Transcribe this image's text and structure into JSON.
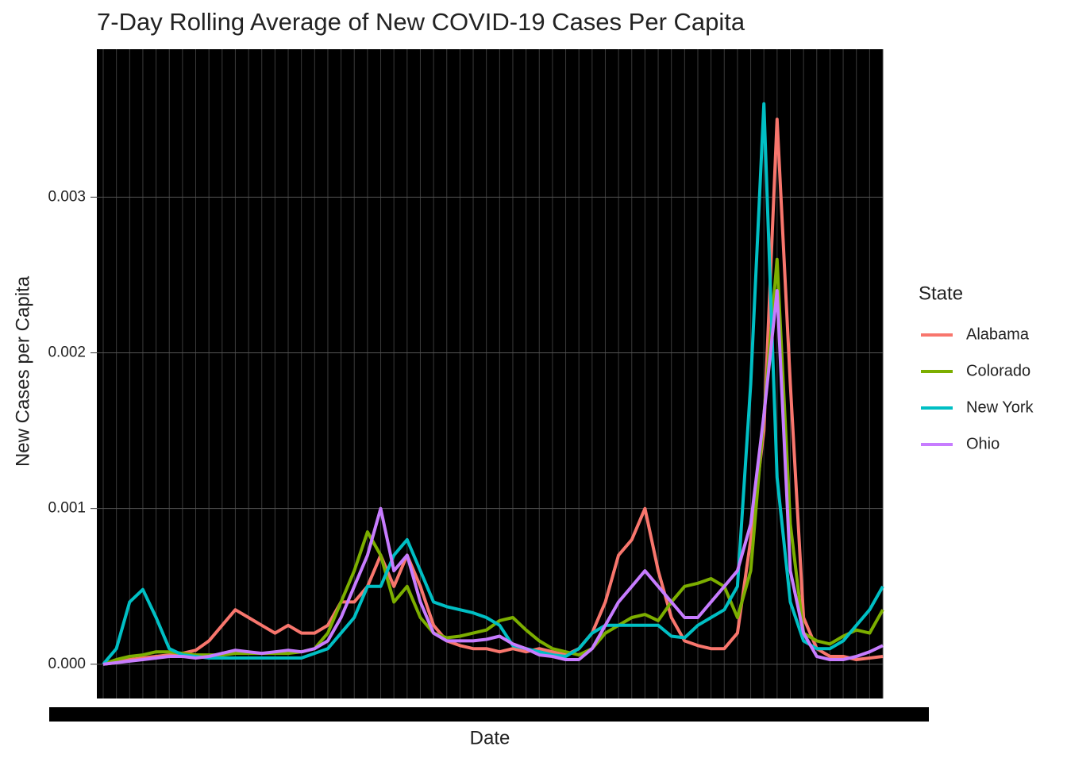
{
  "chart_data": {
    "type": "line",
    "title": "7-Day Rolling Average of New COVID-19 Cases Per Capita",
    "x_label": "Date",
    "y_label": "New Cases per Capita",
    "legend_title": "State",
    "categories": [
      null,
      null,
      null,
      null,
      null,
      null,
      null,
      null,
      null,
      null,
      null,
      null,
      null,
      null,
      null,
      null,
      null,
      null,
      null,
      null,
      null,
      null,
      null,
      null,
      null,
      null,
      null,
      null,
      null,
      null,
      null,
      null,
      null,
      null,
      null,
      null,
      null,
      null,
      null,
      null,
      null,
      null,
      null,
      null,
      null,
      null,
      null,
      null,
      null,
      null,
      null,
      null,
      null,
      null,
      null,
      null,
      null,
      null,
      null,
      null
    ],
    "ylim": [
      -0.00022,
      0.00395
    ],
    "yticks": [
      {
        "value": 0,
        "label": "0.000"
      },
      {
        "value": 0.001,
        "label": "0.001"
      },
      {
        "value": 0.002,
        "label": "0.002"
      },
      {
        "value": 0.003,
        "label": "0.003"
      }
    ],
    "grid": true,
    "series": [
      {
        "name": "Alabama",
        "color": "#f8766d",
        "values": [
          0,
          1e-05,
          3e-05,
          4e-05,
          5e-05,
          6e-05,
          7e-05,
          9e-05,
          0.00015,
          0.00025,
          0.00035,
          0.0003,
          0.00025,
          0.0002,
          0.00025,
          0.0002,
          0.0002,
          0.00025,
          0.0004,
          0.0004,
          0.0005,
          0.0007,
          0.0005,
          0.0007,
          0.0005,
          0.00025,
          0.00015,
          0.00012,
          0.0001,
          0.0001,
          8e-05,
          0.0001,
          8e-05,
          0.0001,
          8e-05,
          6e-05,
          0.0001,
          0.0002,
          0.0004,
          0.0007,
          0.0008,
          0.001,
          0.0006,
          0.0003,
          0.00015,
          0.00012,
          0.0001,
          0.0001,
          0.0002,
          0.0008,
          0.0015,
          0.0035,
          0.0018,
          0.0003,
          0.0001,
          5e-05,
          5e-05,
          3e-05,
          4e-05,
          5e-05
        ]
      },
      {
        "name": "Colorado",
        "color": "#7cae00",
        "values": [
          0,
          3e-05,
          5e-05,
          6e-05,
          8e-05,
          8e-05,
          7e-05,
          6e-05,
          6e-05,
          6e-05,
          7e-05,
          7e-05,
          7e-05,
          7e-05,
          7e-05,
          8e-05,
          0.0001,
          0.0002,
          0.0004,
          0.0006,
          0.00085,
          0.0007,
          0.0004,
          0.0005,
          0.0003,
          0.0002,
          0.00017,
          0.00018,
          0.0002,
          0.00022,
          0.00028,
          0.0003,
          0.00022,
          0.00015,
          0.0001,
          8e-05,
          6e-05,
          0.0001,
          0.0002,
          0.00025,
          0.0003,
          0.00032,
          0.00028,
          0.0004,
          0.0005,
          0.00052,
          0.00055,
          0.0005,
          0.0003,
          0.0006,
          0.0016,
          0.0026,
          0.0009,
          0.0002,
          0.00015,
          0.00013,
          0.00018,
          0.00022,
          0.0002,
          0.00035
        ]
      },
      {
        "name": "New York",
        "color": "#00bfc4",
        "values": [
          0,
          0.0001,
          0.0004,
          0.00048,
          0.0003,
          0.0001,
          6e-05,
          5e-05,
          4e-05,
          4e-05,
          4e-05,
          4e-05,
          4e-05,
          4e-05,
          4e-05,
          4e-05,
          7e-05,
          0.0001,
          0.0002,
          0.0003,
          0.0005,
          0.0005,
          0.0007,
          0.0008,
          0.0006,
          0.0004,
          0.00037,
          0.00035,
          0.00033,
          0.0003,
          0.00025,
          0.00012,
          0.0001,
          8e-05,
          6e-05,
          5e-05,
          0.0001,
          0.0002,
          0.00025,
          0.00025,
          0.00025,
          0.00025,
          0.00025,
          0.00018,
          0.00017,
          0.00025,
          0.0003,
          0.00035,
          0.0005,
          0.0018,
          0.0036,
          0.0012,
          0.0004,
          0.00015,
          0.0001,
          0.0001,
          0.00015,
          0.00025,
          0.00035,
          0.0005
        ]
      },
      {
        "name": "Ohio",
        "color": "#c77cff",
        "values": [
          0,
          1e-05,
          2e-05,
          3e-05,
          4e-05,
          5e-05,
          5e-05,
          4e-05,
          5e-05,
          7e-05,
          9e-05,
          8e-05,
          7e-05,
          8e-05,
          9e-05,
          8e-05,
          0.0001,
          0.00015,
          0.0003,
          0.0005,
          0.0007,
          0.001,
          0.0006,
          0.0007,
          0.0004,
          0.0002,
          0.00015,
          0.00015,
          0.00015,
          0.00016,
          0.00018,
          0.00013,
          0.0001,
          6e-05,
          5e-05,
          3e-05,
          3e-05,
          0.0001,
          0.00025,
          0.0004,
          0.0005,
          0.0006,
          0.0005,
          0.0004,
          0.0003,
          0.0003,
          0.0004,
          0.0005,
          0.0006,
          0.0009,
          0.0016,
          0.0024,
          0.0006,
          0.0002,
          5e-05,
          3e-05,
          3e-05,
          5e-05,
          8e-05,
          0.00012
        ]
      }
    ]
  }
}
